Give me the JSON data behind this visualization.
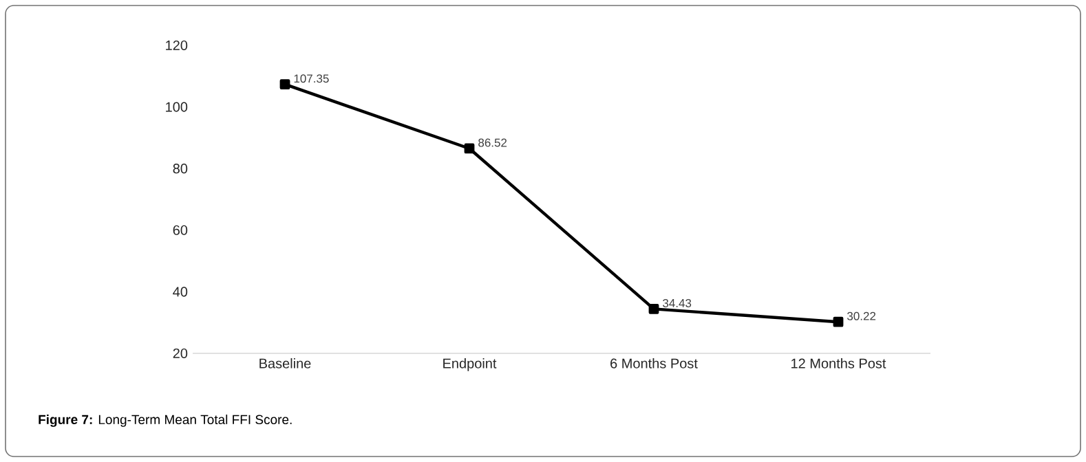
{
  "chart_data": {
    "type": "line",
    "categories": [
      "Baseline",
      "Endpoint",
      "6 Months Post",
      "12 Months Post"
    ],
    "series": [
      {
        "color": "#000000",
        "values": [
          107.35,
          86.52,
          34.43,
          30.22
        ]
      }
    ],
    "ylim": [
      20,
      120
    ],
    "yticks": [
      20,
      40,
      60,
      80,
      100,
      120
    ],
    "marker": "square",
    "line_style": "solid",
    "data_labels": true,
    "grid": false,
    "annotations": [
      "**Figure 7:** Long-Term Mean Total FFI Score."
    ]
  }
}
